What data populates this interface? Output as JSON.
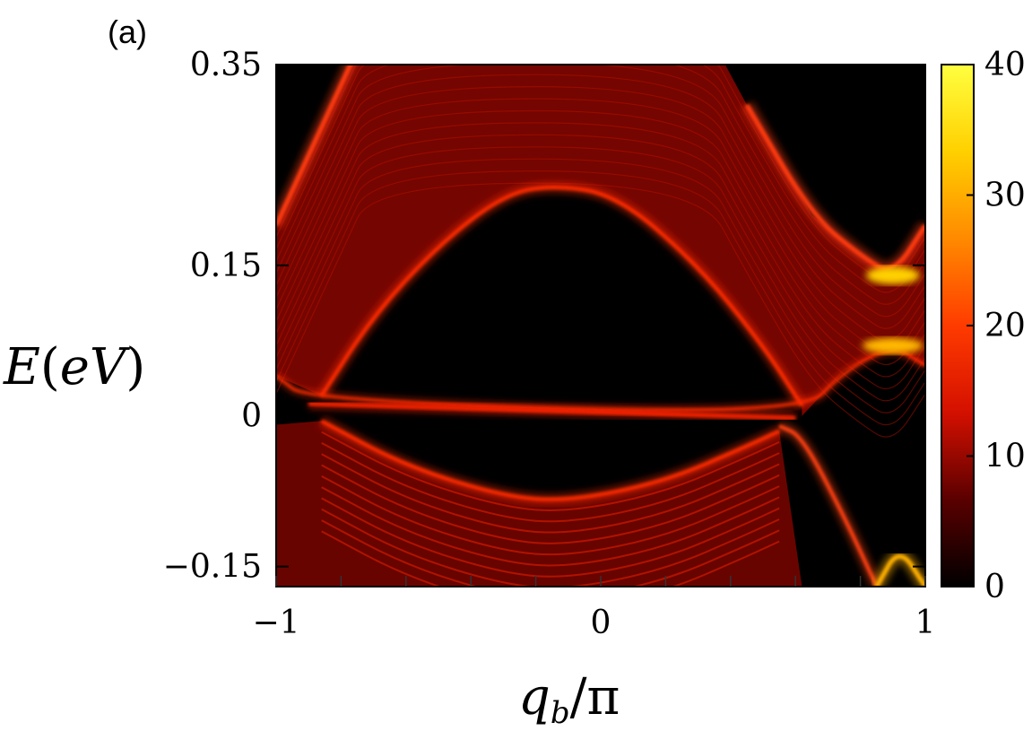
{
  "panel_label": "(a)",
  "chart_data": {
    "type": "heatmap",
    "xlabel": "q_b/π",
    "xlabel_parts": {
      "main": "q",
      "sub": "b",
      "rest": "/π"
    },
    "ylabel": "E(eV)",
    "ylabel_parts": {
      "main": "E",
      "open": "(",
      "inner": "eV",
      "close": ")"
    },
    "xlim": [
      -1,
      1
    ],
    "ylim": [
      -0.17,
      0.35
    ],
    "x_ticks": [
      {
        "value": -1,
        "label": "−1"
      },
      {
        "value": 0,
        "label": "0"
      },
      {
        "value": 1,
        "label": "1"
      }
    ],
    "y_ticks": [
      {
        "value": 0.35,
        "label": "0.35"
      },
      {
        "value": 0.15,
        "label": "0.15"
      },
      {
        "value": 0,
        "label": "0"
      },
      {
        "value": -0.15,
        "label": "−0.15"
      }
    ],
    "colorbar": {
      "range": [
        0,
        40
      ],
      "ticks": [
        {
          "value": 40,
          "label": "40"
        },
        {
          "value": 30,
          "label": "30"
        },
        {
          "value": 20,
          "label": "20"
        },
        {
          "value": 10,
          "label": "10"
        },
        {
          "value": 0,
          "label": "0"
        }
      ],
      "colormap": [
        "#000000",
        "#5a0000",
        "#d41000",
        "#ff3b00",
        "#ff8a00",
        "#ffd000",
        "#ffff40"
      ]
    },
    "features": {
      "upper_band_top": [
        [
          -1.0,
          0.19
        ],
        [
          -0.8,
          0.33
        ],
        [
          -0.7,
          0.4
        ],
        [
          0.3,
          0.4
        ],
        [
          0.45,
          0.31
        ],
        [
          0.65,
          0.2
        ],
        [
          0.8,
          0.16
        ],
        [
          0.9,
          0.14
        ],
        [
          1.0,
          0.19
        ]
      ],
      "upper_band_inner_edge": [
        [
          -0.86,
          0.02
        ],
        [
          -0.7,
          0.1
        ],
        [
          -0.5,
          0.17
        ],
        [
          -0.3,
          0.22
        ],
        [
          -0.15,
          0.23
        ],
        [
          0.05,
          0.22
        ],
        [
          0.3,
          0.15
        ],
        [
          0.5,
          0.07
        ],
        [
          0.62,
          0.01
        ]
      ],
      "upper_band_outer_edge": [
        [
          -1.0,
          0.04
        ],
        [
          -0.9,
          0.015
        ],
        [
          0.62,
          0.0
        ],
        [
          0.75,
          0.045
        ],
        [
          0.9,
          0.07
        ],
        [
          1.0,
          0.05
        ]
      ],
      "surface_state": [
        [
          -0.9,
          0.012
        ],
        [
          0.6,
          -0.002
        ]
      ],
      "lower_band_top": [
        [
          -0.86,
          -0.005
        ],
        [
          -0.6,
          -0.05
        ],
        [
          -0.3,
          -0.08
        ],
        [
          -0.1,
          -0.085
        ],
        [
          0.2,
          -0.065
        ],
        [
          0.45,
          -0.03
        ],
        [
          0.55,
          -0.015
        ]
      ],
      "lower_band_right_edge": [
        [
          0.55,
          -0.01
        ],
        [
          0.62,
          -0.02
        ],
        [
          0.75,
          -0.1
        ],
        [
          0.85,
          -0.17
        ]
      ],
      "lower_gap_cone": [
        [
          0.85,
          -0.17
        ],
        [
          0.92,
          -0.13
        ],
        [
          1.0,
          -0.17
        ]
      ],
      "upper_gap_min": [
        [
          0.9,
          0.14
        ]
      ],
      "lower_gap_max": [
        [
          0.9,
          0.07
        ]
      ]
    }
  }
}
